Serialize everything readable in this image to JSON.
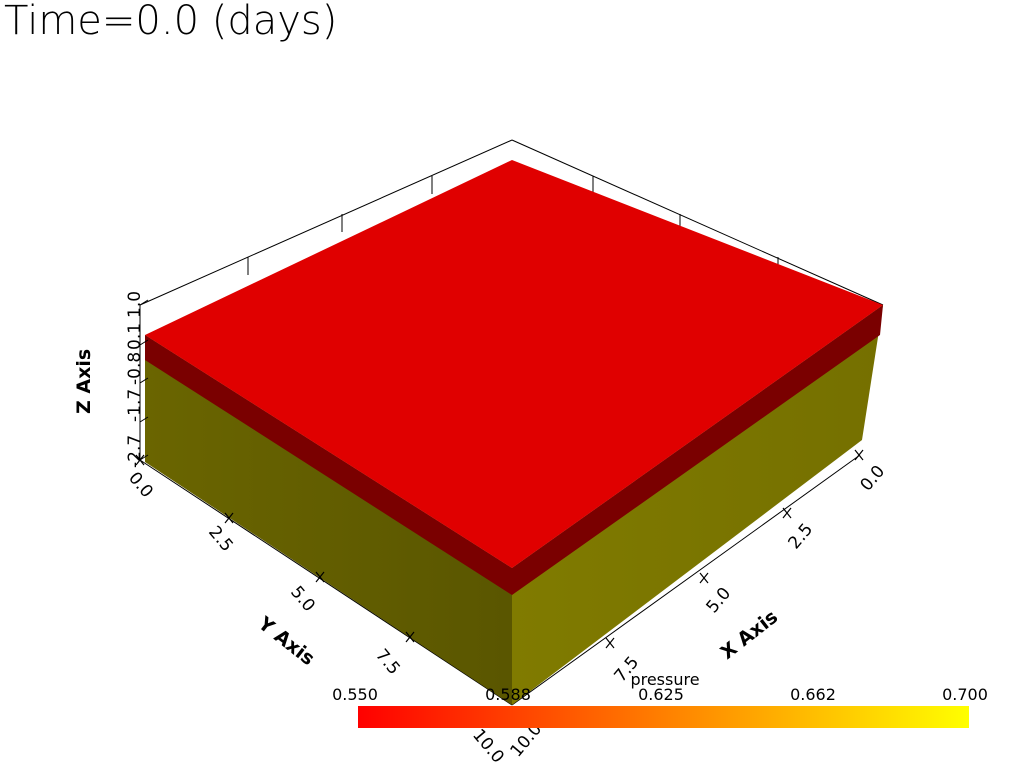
{
  "title": "Time=0.0 (days)",
  "axes": {
    "x": {
      "label": "X Axis",
      "ticks": [
        "0.0",
        "2.5",
        "5.0",
        "7.5",
        "10.0"
      ]
    },
    "y": {
      "label": "Y Axis",
      "ticks": [
        "0.0",
        "2.5",
        "5.0",
        "7.5",
        "10.0"
      ]
    },
    "z": {
      "label": "Z Axis",
      "ticks": [
        "-2.7",
        "-1.7",
        "-0.8",
        "0.1",
        "1.0"
      ]
    }
  },
  "colorbar": {
    "title": "pressure",
    "ticks": [
      "0.550",
      "0.588",
      "0.625",
      "0.662",
      "0.700"
    ],
    "range": [
      0.55,
      0.7
    ],
    "colormap": [
      "#ff0000",
      "#ffff00"
    ]
  },
  "colors": {
    "top_face": "#e00000",
    "layer_band": "#7a0000",
    "side_left": "#646000",
    "side_right": "#7a7500"
  }
}
